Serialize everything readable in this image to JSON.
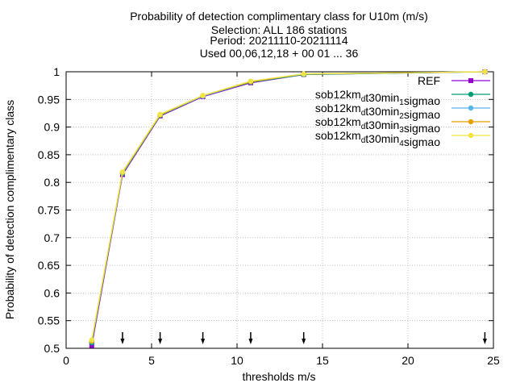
{
  "chart_data": {
    "type": "line",
    "title_lines": [
      "Probability of detection complimentary class  for U10m (m/s)",
      "Selection: ALL    186 stations",
      "Period: 20211110-20211114",
      "Used 00,06,12,18 + 00 01 ... 36"
    ],
    "xlabel": "thresholds m/s",
    "ylabel": "Probability of detection complimentary class",
    "xlim": [
      0,
      25
    ],
    "ylim": [
      0.5,
      1.0
    ],
    "xticks": [
      0,
      5,
      10,
      15,
      20,
      25
    ],
    "xtick_labels": [
      "0",
      "5",
      "10",
      "15",
      "20",
      "25"
    ],
    "yticks": [
      0.5,
      0.55,
      0.6,
      0.65,
      0.7,
      0.75,
      0.8,
      0.85,
      0.9,
      0.95,
      1.0
    ],
    "ytick_labels": [
      "0.5",
      "0.55",
      "0.6",
      "0.65",
      "0.7",
      "0.75",
      "0.8",
      "0.85",
      "0.9",
      "0.95",
      "1"
    ],
    "grid": true,
    "legend_position": "top-right",
    "x": [
      1.5,
      3.3,
      5.5,
      8.0,
      10.8,
      13.9,
      24.5
    ],
    "threshold_arrows_x": [
      3.3,
      5.5,
      8.0,
      10.8,
      13.9,
      24.5
    ],
    "series": [
      {
        "name": "REF",
        "sub": "",
        "tail": "",
        "color": "#9400d3",
        "marker": "square",
        "values": [
          0.505,
          0.814,
          0.92,
          0.955,
          0.98,
          0.995,
          1.0
        ]
      },
      {
        "name": "sob12km",
        "sub": "d",
        "tail": "t30min",
        "sub2": "1",
        "tail2": "sigmao",
        "color": "#009e73",
        "marker": "circle",
        "values": [
          0.51,
          0.816,
          0.921,
          0.956,
          0.981,
          0.995,
          1.0
        ]
      },
      {
        "name": "sob12km",
        "sub": "d",
        "tail": "t30min",
        "sub2": "2",
        "tail2": "sigmao",
        "color": "#56b4e9",
        "marker": "circle",
        "values": [
          0.512,
          0.817,
          0.922,
          0.956,
          0.982,
          0.996,
          1.0
        ]
      },
      {
        "name": "sob12km",
        "sub": "d",
        "tail": "t30min",
        "sub2": "3",
        "tail2": "sigmao",
        "color": "#e69f00",
        "marker": "circle",
        "values": [
          0.513,
          0.818,
          0.922,
          0.957,
          0.982,
          0.996,
          1.0
        ]
      },
      {
        "name": "sob12km",
        "sub": "d",
        "tail": "t30min",
        "sub2": "4",
        "tail2": "sigmao",
        "color": "#f0e442",
        "marker": "circle",
        "values": [
          0.515,
          0.819,
          0.923,
          0.957,
          0.983,
          0.996,
          1.0
        ]
      }
    ]
  }
}
